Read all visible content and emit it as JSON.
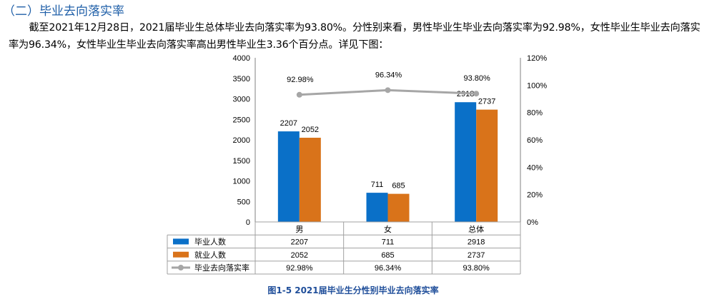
{
  "document": {
    "heading": "（二）毕业去向落实率",
    "paragraph": "截至2021年12月28日，2021届毕业生总体毕业去向落实率为93.80%。分性别来看，男性毕业生毕业去向落实率为92.98%，女性毕业生毕业去向落实率为96.34%，女性毕业生毕业去向落实率高出男性毕业生3.36个百分点。详见下图：",
    "caption": "图1-5 2021届毕业生分性别毕业去向落实率"
  },
  "chart_data": {
    "type": "bar",
    "categories": [
      "男",
      "女",
      "总体"
    ],
    "series": [
      {
        "name": "毕业人数",
        "type": "bar",
        "axis": "left",
        "color": "#0a70c8",
        "values": [
          2207,
          711,
          2918
        ]
      },
      {
        "name": "就业人数",
        "type": "bar",
        "axis": "left",
        "color": "#d9731a",
        "values": [
          2052,
          685,
          2737
        ]
      },
      {
        "name": "毕业去向落实率",
        "type": "line",
        "axis": "right",
        "color": "#a6a6a6",
        "values": [
          92.98,
          96.34,
          93.8
        ],
        "labels": [
          "92.98%",
          "96.34%",
          "93.80%"
        ]
      }
    ],
    "left_axis": {
      "min": 0,
      "max": 4000,
      "step": 500,
      "ticks": [
        "0",
        "500",
        "1000",
        "1500",
        "2000",
        "2500",
        "3000",
        "3500",
        "4000"
      ]
    },
    "right_axis": {
      "min": 0,
      "max": 120,
      "step": 20,
      "ticks": [
        "0%",
        "20%",
        "40%",
        "60%",
        "80%",
        "100%",
        "120%"
      ]
    },
    "data_table": true,
    "gridlines": false
  }
}
